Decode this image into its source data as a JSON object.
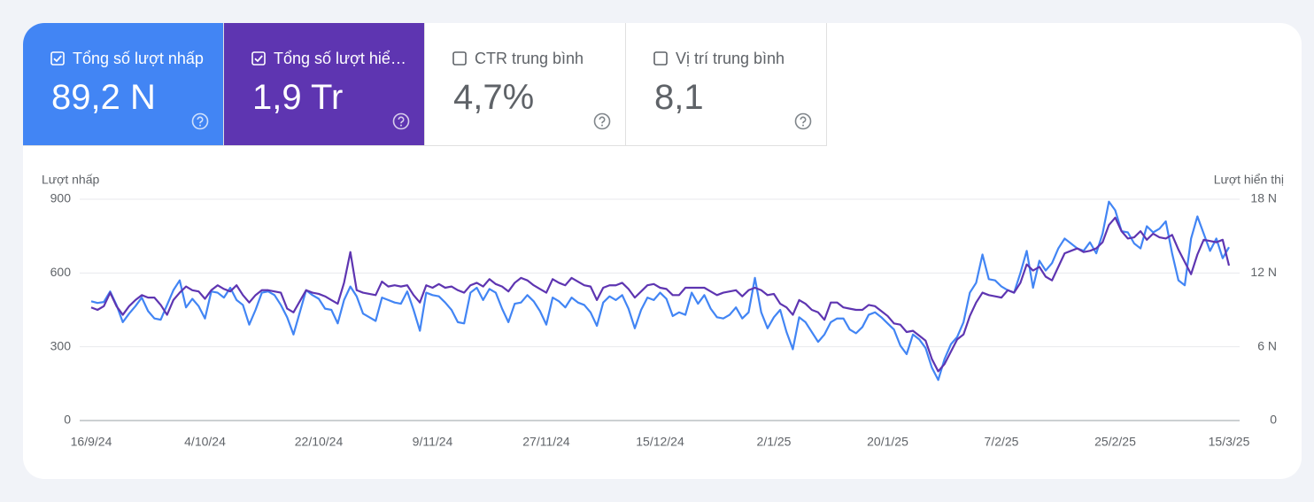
{
  "metrics": [
    {
      "label": "Tổng số lượt nhấp",
      "value": "89,2 N",
      "selected": true,
      "color": "#4285f4"
    },
    {
      "label": "Tổng số lượt hiể…",
      "value": "1,9 Tr",
      "selected": true,
      "color": "#5e35b1"
    },
    {
      "label": "CTR trung bình",
      "value": "4,7%",
      "selected": false,
      "color": "#ffffff"
    },
    {
      "label": "Vị trí trung bình",
      "value": "8,1",
      "selected": false,
      "color": "#ffffff"
    }
  ],
  "chart_data": {
    "type": "line",
    "ylabel": "Lượt nhấp",
    "y2label": "Lượt hiển thị",
    "categories": [
      "16/9/24",
      null,
      null,
      null,
      null,
      null,
      null,
      null,
      null,
      null,
      null,
      null,
      null,
      null,
      null,
      null,
      null,
      null,
      "4/10/24",
      null,
      null,
      null,
      null,
      null,
      null,
      null,
      null,
      null,
      null,
      null,
      null,
      null,
      null,
      null,
      null,
      null,
      "22/10/24",
      null,
      null,
      null,
      null,
      null,
      null,
      null,
      null,
      null,
      null,
      null,
      null,
      null,
      null,
      null,
      null,
      null,
      "9/11/24",
      null,
      null,
      null,
      null,
      null,
      null,
      null,
      null,
      null,
      null,
      null,
      null,
      null,
      null,
      null,
      null,
      null,
      "27/11/24",
      null,
      null,
      null,
      null,
      null,
      null,
      null,
      null,
      null,
      null,
      null,
      null,
      null,
      null,
      null,
      null,
      null,
      "15/12/24",
      null,
      null,
      null,
      null,
      null,
      null,
      null,
      null,
      null,
      null,
      null,
      null,
      null,
      null,
      null,
      null,
      null,
      "2/1/25",
      null,
      null,
      null,
      null,
      null,
      null,
      null,
      null,
      null,
      null,
      null,
      null,
      null,
      null,
      null,
      null,
      null,
      "20/1/25",
      null,
      null,
      null,
      null,
      null,
      null,
      null,
      null,
      null,
      null,
      null,
      null,
      null,
      null,
      null,
      null,
      null,
      "7/2/25",
      null,
      null,
      null,
      null,
      null,
      null,
      null,
      null,
      null,
      null,
      null,
      null,
      null,
      null,
      null,
      null,
      null,
      "25/2/25",
      null,
      null,
      null,
      null,
      null,
      null,
      null,
      null,
      null,
      null,
      null,
      null,
      null,
      null,
      null,
      null,
      null,
      "15/3/25"
    ],
    "series": [
      {
        "color": "#4285f4",
        "axis": "y",
        "values": [
          485,
          478,
          482,
          525,
          470,
          400,
          435,
          465,
          500,
          445,
          415,
          410,
          470,
          530,
          570,
          460,
          495,
          465,
          415,
          525,
          520,
          500,
          540,
          490,
          470,
          390,
          450,
          520,
          525,
          510,
          470,
          420,
          350,
          440,
          530,
          510,
          495,
          455,
          450,
          395,
          490,
          545,
          505,
          435,
          420,
          405,
          500,
          490,
          480,
          475,
          525,
          450,
          365,
          520,
          510,
          505,
          480,
          450,
          400,
          395,
          520,
          540,
          490,
          535,
          520,
          455,
          400,
          475,
          480,
          510,
          485,
          445,
          390,
          500,
          485,
          460,
          500,
          480,
          470,
          440,
          385,
          480,
          505,
          490,
          510,
          455,
          375,
          450,
          500,
          490,
          520,
          495,
          425,
          440,
          430,
          520,
          475,
          510,
          455,
          420,
          415,
          430,
          460,
          415,
          440,
          580,
          440,
          375,
          420,
          450,
          360,
          290,
          420,
          400,
          360,
          320,
          350,
          400,
          415,
          415,
          370,
          355,
          380,
          430,
          440,
          420,
          395,
          370,
          305,
          270,
          350,
          330,
          295,
          215,
          165,
          250,
          310,
          340,
          400,
          520,
          560,
          675,
          575,
          570,
          545,
          530,
          520,
          600,
          690,
          540,
          650,
          610,
          640,
          700,
          740,
          720,
          700,
          690,
          725,
          680,
          760,
          890,
          855,
          770,
          765,
          720,
          700,
          790,
          765,
          780,
          810,
          680,
          570,
          550,
          740,
          830,
          760,
          690,
          740,
          660,
          705
        ]
      },
      {
        "color": "#5e35b1",
        "axis": "y2",
        "values": [
          9200,
          9000,
          9300,
          10400,
          9300,
          8600,
          9300,
          9800,
          10200,
          10000,
          10000,
          9400,
          8600,
          9800,
          10400,
          10900,
          10600,
          10500,
          9900,
          10600,
          11000,
          10700,
          10500,
          11000,
          10200,
          9600,
          10200,
          10600,
          10600,
          10500,
          10400,
          9100,
          8800,
          9700,
          10600,
          10400,
          10300,
          10100,
          9800,
          9500,
          11200,
          13700,
          10600,
          10400,
          10300,
          10200,
          11300,
          10900,
          11000,
          10900,
          11000,
          10200,
          9600,
          11000,
          10800,
          11100,
          10800,
          10900,
          10600,
          10400,
          11000,
          11200,
          10900,
          11500,
          11100,
          10900,
          10500,
          11200,
          11600,
          11400,
          11000,
          10700,
          10400,
          11500,
          11200,
          11000,
          11600,
          11300,
          11000,
          10900,
          9800,
          10800,
          11000,
          11000,
          11200,
          10700,
          10000,
          10500,
          11000,
          11100,
          10800,
          10700,
          10200,
          10200,
          10800,
          10800,
          10800,
          10800,
          10500,
          10200,
          10400,
          10500,
          10600,
          10100,
          10600,
          10800,
          10600,
          10200,
          10300,
          9500,
          9200,
          8600,
          9800,
          9500,
          9000,
          8800,
          8200,
          9600,
          9600,
          9200,
          9100,
          9000,
          9000,
          9400,
          9300,
          8900,
          8500,
          7900,
          7800,
          7200,
          7300,
          6900,
          6500,
          5000,
          4000,
          4600,
          5600,
          6600,
          7000,
          8500,
          9600,
          10400,
          10200,
          10100,
          10000,
          10600,
          10400,
          11200,
          12700,
          12200,
          12500,
          11700,
          11400,
          12500,
          13600,
          13800,
          14000,
          13700,
          13800,
          14000,
          14500,
          15900,
          16500,
          15400,
          14800,
          14900,
          15400,
          14700,
          15200,
          14900,
          14800,
          15100,
          13900,
          12900,
          11900,
          13500,
          14700,
          14600,
          14500,
          14700,
          12600
        ]
      }
    ],
    "ylim": [
      0,
      900
    ],
    "yticks": [
      0,
      300,
      600,
      900
    ],
    "y2lim": [
      0,
      18000
    ],
    "y2ticks": [
      0,
      {
        "value": 6000,
        "label": "6 N"
      },
      {
        "value": 12000,
        "label": "12 N"
      },
      {
        "value": 18000,
        "label": "18 N"
      }
    ],
    "grid": true
  }
}
